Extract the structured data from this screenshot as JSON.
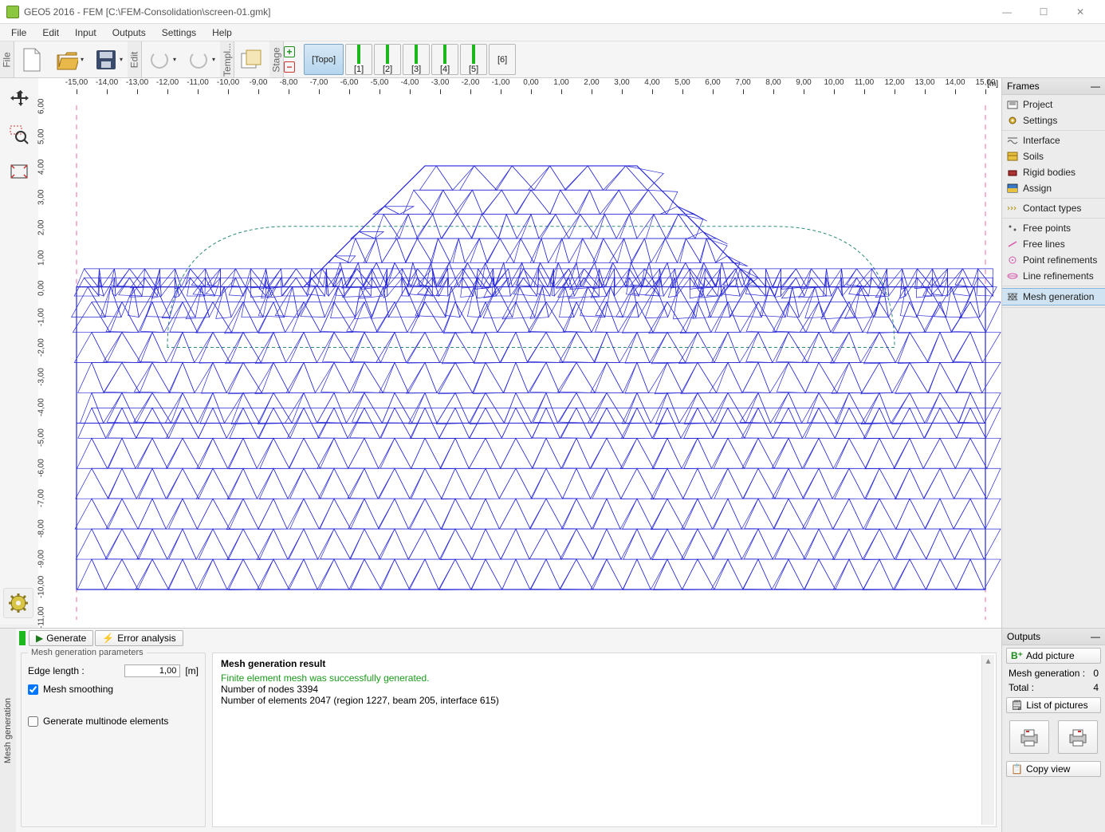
{
  "window": {
    "title": "GEO5 2016 - FEM [C:\\FEM-Consolidation\\screen-01.gmk]"
  },
  "menu": [
    "File",
    "Edit",
    "Input",
    "Outputs",
    "Settings",
    "Help"
  ],
  "stages": {
    "topo": "[Topo]",
    "items": [
      "[1]",
      "[2]",
      "[3]",
      "[4]",
      "[5]",
      "[6]"
    ]
  },
  "ruler": {
    "unit": "[m]",
    "x_min": -15.0,
    "x_max": 15.0,
    "x_step": 1.0,
    "y_min": -11.0,
    "y_max": 6.0,
    "y_step": 1.0
  },
  "mesh_diagram": {
    "color": "#2727d6",
    "embankment_outline": [
      [
        -15,
        0
      ],
      [
        -7.5,
        0
      ],
      [
        -3.5,
        4
      ],
      [
        3.5,
        4
      ],
      [
        7.5,
        0
      ],
      [
        15,
        0
      ],
      [
        15,
        -10
      ],
      [
        -15,
        -10
      ]
    ],
    "dashline_color": "#2e8b7a",
    "pink_line_color": "#e86aa6",
    "n_cols": 30,
    "mid_layer_y": -4.5
  },
  "frames": {
    "title": "Frames",
    "groups": [
      [
        {
          "icon": "project-icon",
          "label": "Project"
        },
        {
          "icon": "gear-icon",
          "label": "Settings"
        }
      ],
      [
        {
          "icon": "interface-icon",
          "label": "Interface"
        },
        {
          "icon": "soils-icon",
          "label": "Soils"
        },
        {
          "icon": "rigid-icon",
          "label": "Rigid bodies"
        },
        {
          "icon": "assign-icon",
          "label": "Assign"
        }
      ],
      [
        {
          "icon": "contact-icon",
          "label": "Contact types"
        }
      ],
      [
        {
          "icon": "freepts-icon",
          "label": "Free points"
        },
        {
          "icon": "freelines-icon",
          "label": "Free lines"
        },
        {
          "icon": "ptref-icon",
          "label": "Point refinements"
        },
        {
          "icon": "lineref-icon",
          "label": "Line refinements"
        }
      ],
      [
        {
          "icon": "meshgen-icon",
          "label": "Mesh generation",
          "selected": true
        }
      ]
    ]
  },
  "bottom": {
    "vlabel": "Mesh generation",
    "generate": "Generate",
    "error_analysis": "Error analysis",
    "params_title": "Mesh generation parameters",
    "edge_label": "Edge length :",
    "edge_value": "1,00",
    "edge_unit": "[m]",
    "smoothing": "Mesh smoothing",
    "multinode": "Generate multinode elements",
    "result_title": "Mesh generation result",
    "result_ok": "Finite element mesh was successfully generated.",
    "nodes_line": "Number of nodes 3394",
    "elems_line": "Number of elements 2047 (region 1227, beam 205, interface 615)"
  },
  "outputs": {
    "title": "Outputs",
    "add_picture": "Add picture",
    "meshgen_label": "Mesh generation :",
    "meshgen_count": "0",
    "total_label": "Total :",
    "total_count": "4",
    "list_pictures": "List of pictures",
    "copy_view": "Copy view"
  }
}
